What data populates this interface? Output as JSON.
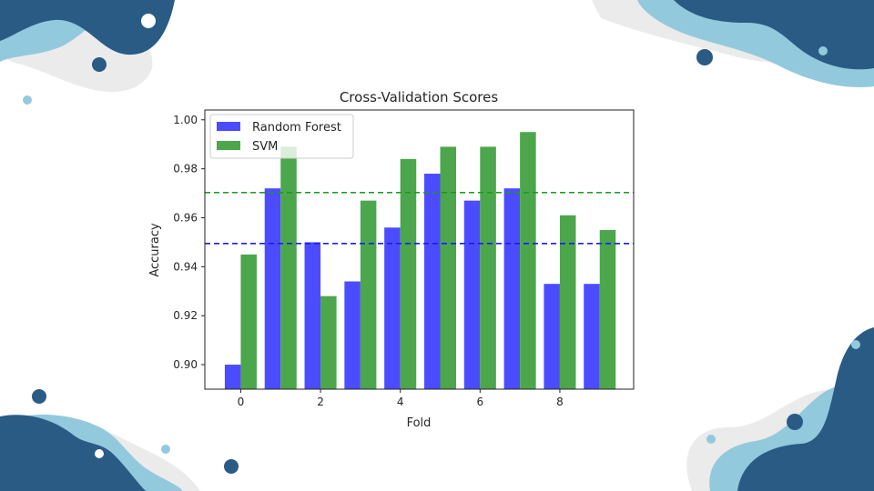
{
  "theme": {
    "dark_blue": "#295b85",
    "light_blue": "#93c9dd",
    "light_gray": "#ebebeb"
  },
  "chart_data": {
    "type": "bar",
    "title": "Cross-Validation Scores",
    "xlabel": "Fold",
    "ylabel": "Accuracy",
    "x": [
      0,
      1,
      2,
      3,
      4,
      5,
      6,
      7,
      8,
      9
    ],
    "xticks": [
      0,
      2,
      4,
      6,
      8
    ],
    "xtick_labels": [
      "0",
      "2",
      "4",
      "6",
      "8"
    ],
    "yticks": [
      0.9,
      0.92,
      0.94,
      0.96,
      0.98,
      1.0
    ],
    "ytick_labels": [
      "0.90",
      "0.92",
      "0.94",
      "0.96",
      "0.98",
      "1.00"
    ],
    "ylim": [
      0.89,
      1.004
    ],
    "xlim": [
      -0.9,
      9.85
    ],
    "bar_width": 0.4,
    "series": [
      {
        "name": "Random Forest",
        "color": "#4c4cff",
        "values": [
          0.9,
          0.972,
          0.95,
          0.934,
          0.956,
          0.978,
          0.967,
          0.972,
          0.933,
          0.933
        ],
        "mean": 0.9495
      },
      {
        "name": "SVM",
        "color": "#4ca64c",
        "values": [
          0.945,
          0.989,
          0.928,
          0.967,
          0.984,
          0.989,
          0.989,
          0.995,
          0.961,
          0.955
        ],
        "mean": 0.9703
      }
    ],
    "mean_lines": [
      {
        "series": "Random Forest",
        "value": 0.9495,
        "color": "#1c1cf0",
        "style": "dashed"
      },
      {
        "series": "SVM",
        "value": 0.9703,
        "color": "#1a9a1a",
        "style": "dashed"
      }
    ],
    "legend_position": "top-left"
  }
}
